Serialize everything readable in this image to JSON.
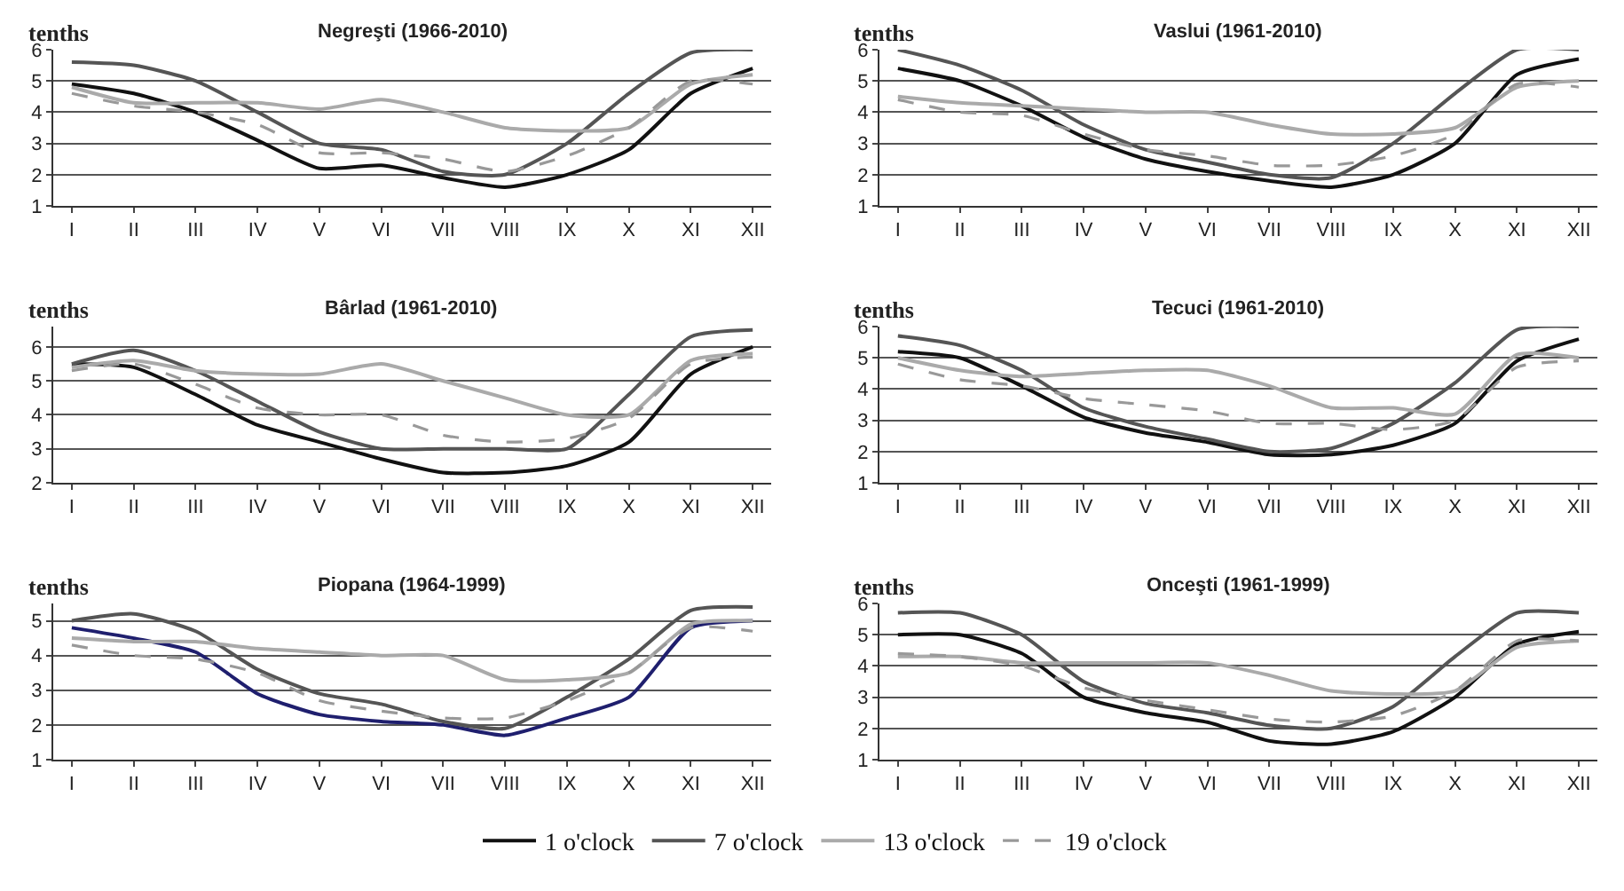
{
  "chart_data": [
    {
      "type": "line",
      "title": "Negreşti (1966-2010)",
      "ylabel": "tenths",
      "categories": [
        "I",
        "II",
        "III",
        "IV",
        "V",
        "VI",
        "VII",
        "VIII",
        "IX",
        "X",
        "XI",
        "XII"
      ],
      "ylim": [
        1,
        6
      ],
      "yticks": [
        1,
        2,
        3,
        4,
        5,
        6
      ],
      "grid": "y",
      "marker": "none",
      "legend": "bottom",
      "series": [
        {
          "name": "1 o'clock",
          "color": "#111111",
          "line_style": "solid",
          "values": [
            4.9,
            4.6,
            4.0,
            3.1,
            2.2,
            2.3,
            1.9,
            1.6,
            2.0,
            2.8,
            4.6,
            5.4
          ]
        },
        {
          "name": "7 o'clock",
          "color": "#555555",
          "line_style": "solid",
          "values": [
            5.6,
            5.5,
            5.0,
            4.0,
            3.0,
            2.8,
            2.1,
            2.0,
            3.0,
            4.6,
            5.9,
            6.0
          ]
        },
        {
          "name": "13 o'clock",
          "color": "#aaaaaa",
          "line_style": "solid",
          "values": [
            4.8,
            4.3,
            4.3,
            4.3,
            4.1,
            4.4,
            4.0,
            3.5,
            3.4,
            3.5,
            4.9,
            5.2
          ]
        },
        {
          "name": "19 o'clock",
          "color": "#999999",
          "line_style": "dashed",
          "values": [
            4.6,
            4.2,
            4.0,
            3.6,
            2.7,
            2.7,
            2.5,
            2.1,
            2.6,
            3.5,
            5.0,
            4.9
          ]
        }
      ]
    },
    {
      "type": "line",
      "title": "Vaslui (1961-2010)",
      "ylabel": "tenths",
      "categories": [
        "I",
        "II",
        "III",
        "IV",
        "V",
        "VI",
        "VII",
        "VIII",
        "IX",
        "X",
        "XI",
        "XII"
      ],
      "ylim": [
        1,
        6
      ],
      "yticks": [
        1,
        2,
        3,
        4,
        5,
        6
      ],
      "grid": "y",
      "marker": "none",
      "series": [
        {
          "color": "#111111",
          "line_style": "solid",
          "values": [
            5.4,
            5.0,
            4.2,
            3.2,
            2.5,
            2.1,
            1.8,
            1.6,
            2.0,
            3.0,
            5.2,
            5.7
          ]
        },
        {
          "color": "#555555",
          "line_style": "solid",
          "values": [
            6.0,
            5.5,
            4.7,
            3.6,
            2.8,
            2.4,
            2.0,
            1.9,
            3.0,
            4.6,
            6.0,
            6.0
          ]
        },
        {
          "color": "#aaaaaa",
          "line_style": "solid",
          "values": [
            4.5,
            4.3,
            4.2,
            4.1,
            4.0,
            4.0,
            3.6,
            3.3,
            3.3,
            3.5,
            4.8,
            5.0
          ]
        },
        {
          "color": "#999999",
          "line_style": "dashed",
          "values": [
            4.4,
            4.0,
            3.9,
            3.3,
            2.8,
            2.6,
            2.3,
            2.3,
            2.6,
            3.3,
            4.9,
            4.8
          ]
        }
      ]
    },
    {
      "type": "line",
      "title": "Bârlad (1961-2010)",
      "ylabel": "tenths",
      "categories": [
        "I",
        "II",
        "III",
        "IV",
        "V",
        "VI",
        "VII",
        "VIII",
        "IX",
        "X",
        "XI",
        "XII"
      ],
      "ylim": [
        2,
        6.6
      ],
      "yticks": [
        2,
        3,
        4,
        5,
        6
      ],
      "grid": "y",
      "marker": "none",
      "series": [
        {
          "color": "#111111",
          "line_style": "solid",
          "values": [
            5.5,
            5.4,
            4.6,
            3.7,
            3.2,
            2.7,
            2.3,
            2.3,
            2.5,
            3.2,
            5.2,
            6.0
          ]
        },
        {
          "color": "#555555",
          "line_style": "solid",
          "values": [
            5.5,
            5.9,
            5.3,
            4.4,
            3.5,
            3.0,
            3.0,
            3.0,
            3.0,
            4.6,
            6.3,
            6.5
          ]
        },
        {
          "color": "#aaaaaa",
          "line_style": "solid",
          "values": [
            5.4,
            5.6,
            5.3,
            5.2,
            5.2,
            5.5,
            5.0,
            4.5,
            4.0,
            4.0,
            5.6,
            5.8
          ]
        },
        {
          "color": "#999999",
          "line_style": "dashed",
          "values": [
            5.3,
            5.5,
            4.9,
            4.2,
            4.0,
            4.0,
            3.4,
            3.2,
            3.3,
            3.9,
            5.5,
            5.7
          ]
        }
      ]
    },
    {
      "type": "line",
      "title": "Tecuci (1961-2010)",
      "ylabel": "tenths",
      "categories": [
        "I",
        "II",
        "III",
        "IV",
        "V",
        "VI",
        "VII",
        "VIII",
        "IX",
        "X",
        "XI",
        "XII"
      ],
      "ylim": [
        1,
        6
      ],
      "yticks": [
        1,
        2,
        3,
        4,
        5,
        6
      ],
      "grid": "y",
      "marker": "none",
      "series": [
        {
          "color": "#111111",
          "line_style": "solid",
          "values": [
            5.2,
            5.0,
            4.1,
            3.1,
            2.6,
            2.3,
            1.9,
            1.9,
            2.2,
            2.9,
            4.9,
            5.6
          ]
        },
        {
          "color": "#555555",
          "line_style": "solid",
          "values": [
            5.7,
            5.4,
            4.6,
            3.4,
            2.8,
            2.4,
            2.0,
            2.1,
            2.9,
            4.2,
            5.9,
            6.0
          ]
        },
        {
          "color": "#aaaaaa",
          "line_style": "solid",
          "values": [
            5.0,
            4.6,
            4.4,
            4.5,
            4.6,
            4.6,
            4.1,
            3.4,
            3.4,
            3.2,
            5.1,
            5.0
          ]
        },
        {
          "color": "#999999",
          "line_style": "dashed",
          "values": [
            4.8,
            4.3,
            4.1,
            3.7,
            3.5,
            3.3,
            2.9,
            2.9,
            2.7,
            3.0,
            4.7,
            4.9
          ]
        }
      ]
    },
    {
      "type": "line",
      "title": "Piopana (1964-1999)",
      "ylabel": "tenths",
      "categories": [
        "I",
        "II",
        "III",
        "IV",
        "V",
        "VI",
        "VII",
        "VIII",
        "IX",
        "X",
        "XI",
        "XII"
      ],
      "ylim": [
        1,
        5.5
      ],
      "yticks": [
        1,
        2,
        3,
        4,
        5
      ],
      "grid": "y",
      "marker": "none",
      "series": [
        {
          "color": "#1f1f6e",
          "line_style": "solid",
          "values": [
            4.8,
            4.5,
            4.1,
            2.9,
            2.3,
            2.1,
            2.0,
            1.7,
            2.2,
            2.8,
            4.8,
            5.0
          ]
        },
        {
          "color": "#555555",
          "line_style": "solid",
          "values": [
            5.0,
            5.2,
            4.7,
            3.6,
            2.9,
            2.6,
            2.1,
            1.9,
            2.8,
            3.9,
            5.3,
            5.4
          ]
        },
        {
          "color": "#aaaaaa",
          "line_style": "solid",
          "values": [
            4.5,
            4.4,
            4.4,
            4.2,
            4.1,
            4.0,
            4.0,
            3.3,
            3.3,
            3.5,
            4.9,
            5.0
          ]
        },
        {
          "color": "#999999",
          "line_style": "dashed",
          "values": [
            4.3,
            4.0,
            3.9,
            3.5,
            2.7,
            2.4,
            2.2,
            2.2,
            2.7,
            3.5,
            4.8,
            4.7
          ]
        }
      ]
    },
    {
      "type": "line",
      "title": "Onceşti (1961-1999)",
      "ylabel": "tenths",
      "categories": [
        "I",
        "II",
        "III",
        "IV",
        "V",
        "VI",
        "VII",
        "VIII",
        "IX",
        "X",
        "XI",
        "XII"
      ],
      "ylim": [
        1,
        6
      ],
      "yticks": [
        1,
        2,
        3,
        4,
        5,
        6
      ],
      "grid": "y",
      "marker": "none",
      "series": [
        {
          "color": "#111111",
          "line_style": "solid",
          "values": [
            5.0,
            5.0,
            4.4,
            3.0,
            2.5,
            2.2,
            1.6,
            1.5,
            1.9,
            3.0,
            4.7,
            5.1
          ]
        },
        {
          "color": "#555555",
          "line_style": "solid",
          "values": [
            5.7,
            5.7,
            5.0,
            3.5,
            2.8,
            2.5,
            2.1,
            2.0,
            2.7,
            4.3,
            5.7,
            5.7
          ]
        },
        {
          "color": "#aaaaaa",
          "line_style": "solid",
          "values": [
            4.3,
            4.3,
            4.1,
            4.1,
            4.1,
            4.1,
            3.7,
            3.2,
            3.1,
            3.2,
            4.6,
            4.8
          ]
        },
        {
          "color": "#999999",
          "line_style": "dashed",
          "values": [
            4.4,
            4.3,
            4.0,
            3.3,
            2.9,
            2.6,
            2.3,
            2.2,
            2.4,
            3.2,
            4.8,
            4.8
          ]
        }
      ]
    }
  ]
}
